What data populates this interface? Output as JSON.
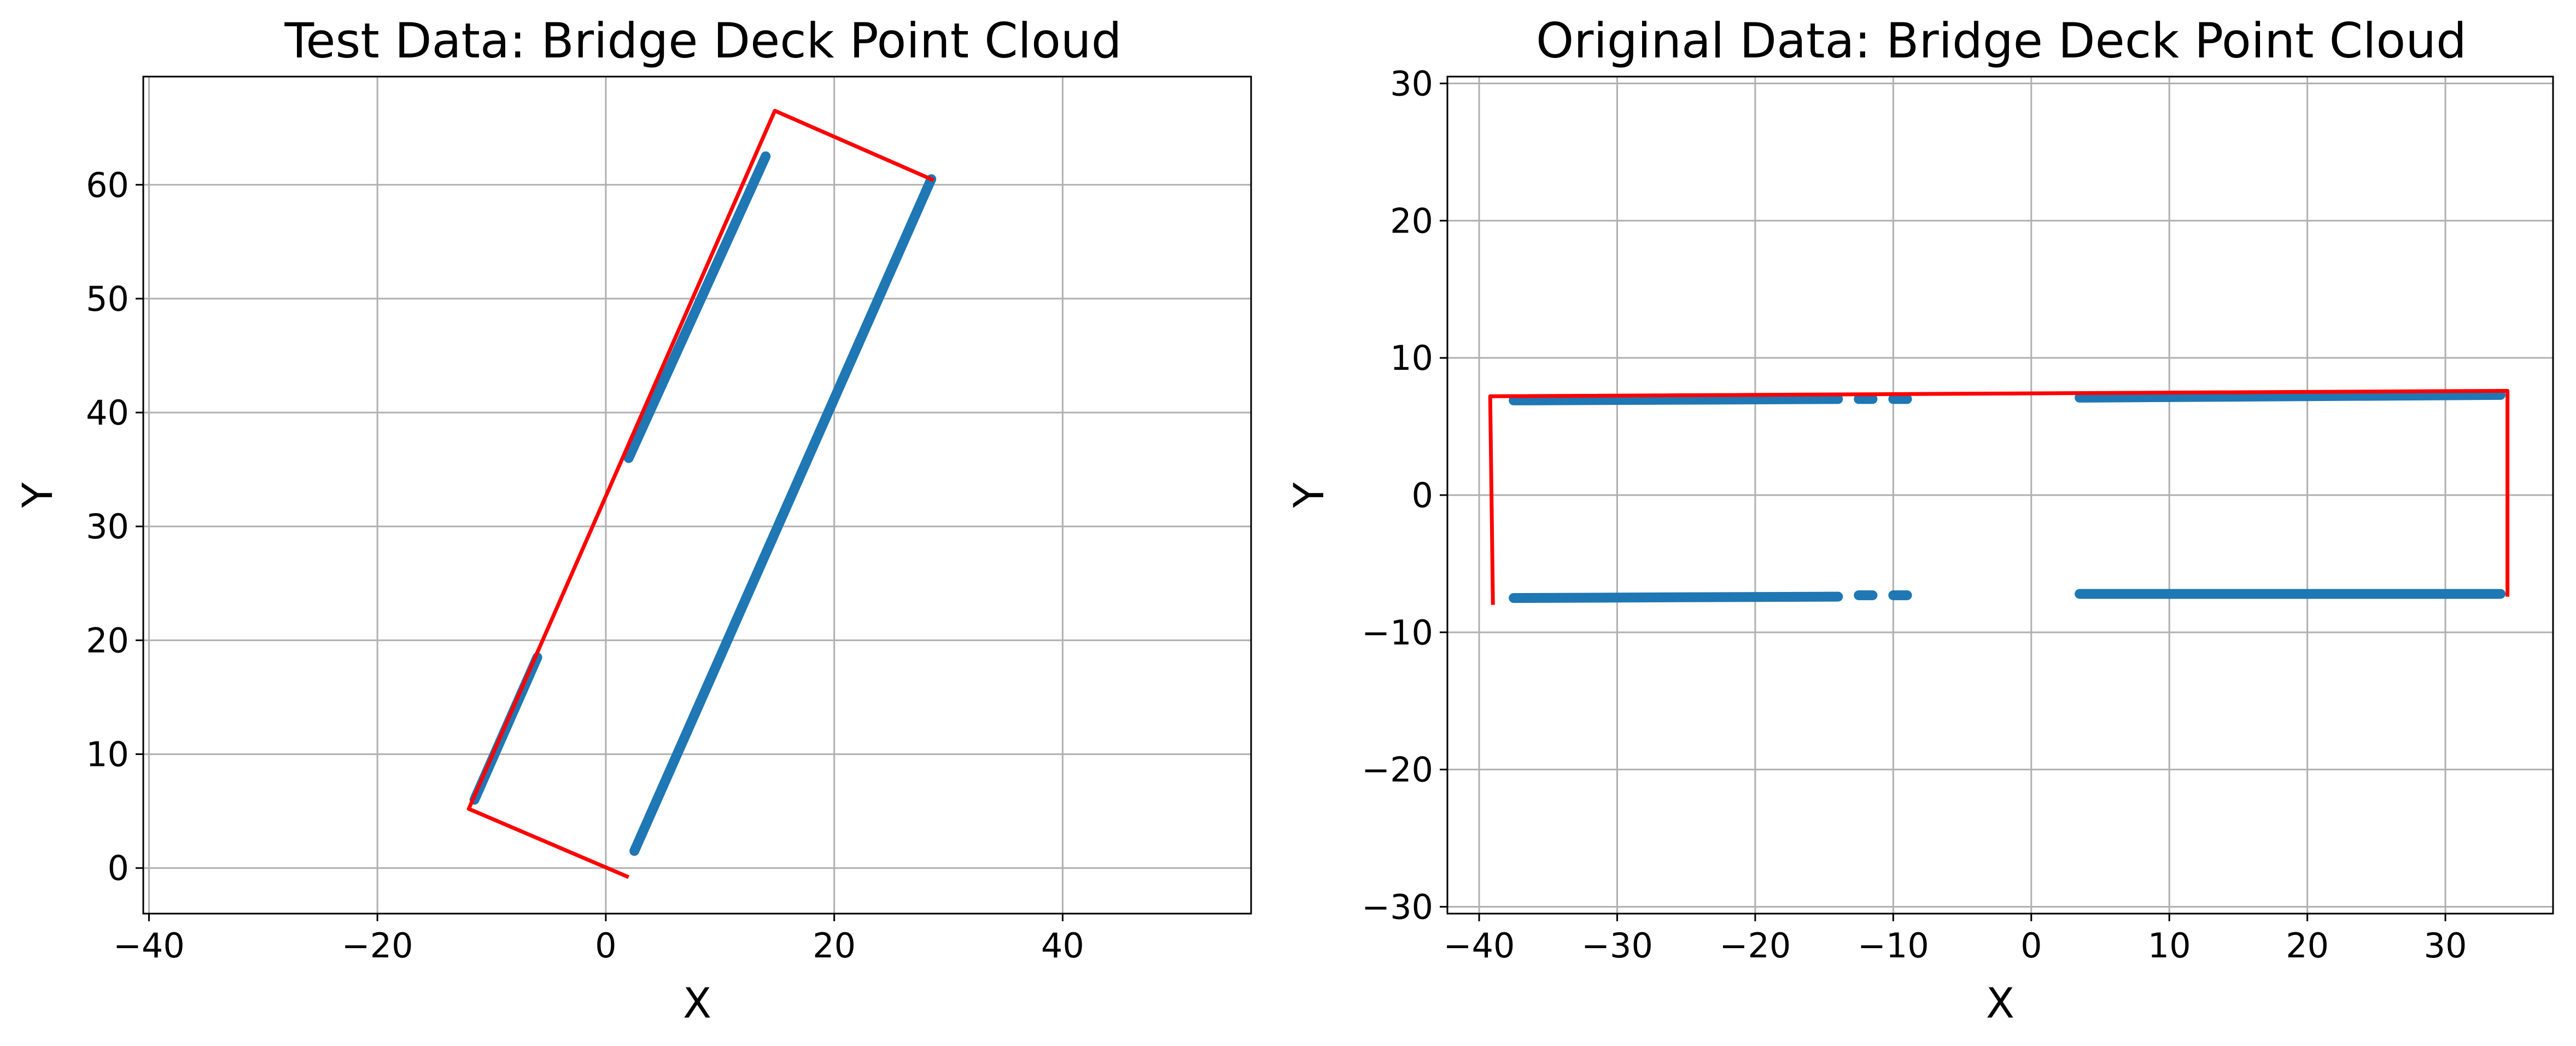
{
  "chart_data": [
    {
      "type": "scatter",
      "title": "Test Data: Bridge Deck Point Cloud",
      "xlabel": "X",
      "ylabel": "Y",
      "xlim": [
        -40.5,
        56.5
      ],
      "ylim": [
        -4,
        69.5
      ],
      "xticks": [
        -40,
        -20,
        0,
        20,
        40
      ],
      "yticks": [
        0,
        10,
        20,
        30,
        40,
        50,
        60
      ],
      "tick_labels_x": [
        "−40",
        "−20",
        "0",
        "20",
        "40"
      ],
      "tick_labels_y": [
        "0",
        "10",
        "20",
        "30",
        "40",
        "50",
        "60"
      ],
      "grid": true,
      "series": [
        {
          "kind": "points",
          "color": "#1f77b4",
          "segments": [
            [
              [
                -11.5,
                6.0
              ],
              [
                -6.0,
                18.5
              ]
            ],
            [
              [
                2.0,
                36.0
              ],
              [
                14.0,
                62.5
              ]
            ],
            [
              [
                2.5,
                1.5
              ],
              [
                28.5,
                60.5
              ]
            ]
          ]
        },
        {
          "kind": "line",
          "color": "#ff0000",
          "points": [
            [
              2.0,
              -0.8
            ],
            [
              -12.0,
              5.2
            ],
            [
              14.8,
              66.5
            ],
            [
              28.7,
              60.4
            ]
          ]
        }
      ]
    },
    {
      "type": "scatter",
      "title": "Original Data: Bridge Deck Point Cloud",
      "xlabel": "X",
      "ylabel": "Y",
      "xlim": [
        -42.3,
        37.8
      ],
      "ylim": [
        -30.5,
        30.5
      ],
      "xticks": [
        -40,
        -30,
        -20,
        -10,
        0,
        10,
        20,
        30
      ],
      "yticks": [
        -30,
        -20,
        -10,
        0,
        10,
        20,
        30
      ],
      "tick_labels_x": [
        "−40",
        "−30",
        "−20",
        "−10",
        "0",
        "10",
        "20",
        "30"
      ],
      "tick_labels_y": [
        "−30",
        "−20",
        "−10",
        "0",
        "10",
        "20",
        "30"
      ],
      "grid": true,
      "series": [
        {
          "kind": "points",
          "color": "#1f77b4",
          "segments": [
            [
              [
                -37.5,
                6.9
              ],
              [
                -14.0,
                7.0
              ]
            ],
            [
              [
                -12.5,
                7.0
              ],
              [
                -11.5,
                7.0
              ]
            ],
            [
              [
                -10.0,
                7.0
              ],
              [
                -9.0,
                7.0
              ]
            ],
            [
              [
                3.5,
                7.1
              ],
              [
                34.0,
                7.3
              ]
            ],
            [
              [
                -37.5,
                -7.5
              ],
              [
                -14.0,
                -7.4
              ]
            ],
            [
              [
                -12.5,
                -7.3
              ],
              [
                -11.5,
                -7.3
              ]
            ],
            [
              [
                -10.0,
                -7.3
              ],
              [
                -9.0,
                -7.3
              ]
            ],
            [
              [
                3.5,
                -7.2
              ],
              [
                34.0,
                -7.2
              ]
            ]
          ]
        },
        {
          "kind": "line",
          "color": "#ff0000",
          "points": [
            [
              -39.0,
              -8.0
            ],
            [
              -39.2,
              7.2
            ],
            [
              34.5,
              7.6
            ],
            [
              34.5,
              -7.4
            ]
          ]
        }
      ]
    }
  ]
}
